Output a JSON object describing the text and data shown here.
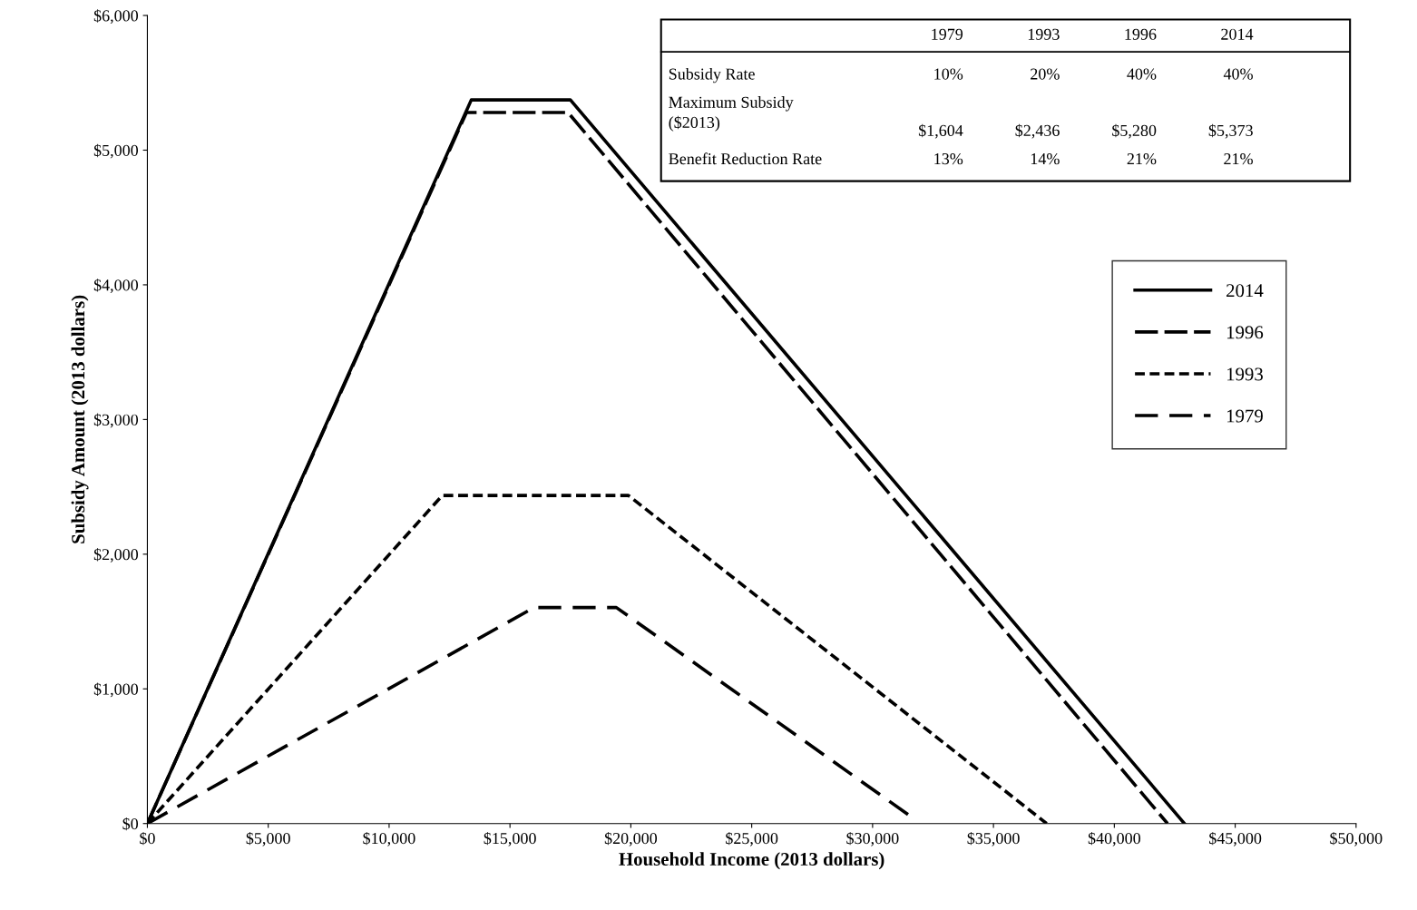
{
  "chart_data": {
    "type": "line",
    "xlabel": "Household Income (2013 dollars)",
    "ylabel": "Subsidy Amount (2013 dollars)",
    "xlim": [
      0,
      50000
    ],
    "ylim": [
      0,
      6000
    ],
    "xticks": [
      {
        "value": 0,
        "label": "$0"
      },
      {
        "value": 5000,
        "label": "$5,000"
      },
      {
        "value": 10000,
        "label": "$10,000"
      },
      {
        "value": 15000,
        "label": "$15,000"
      },
      {
        "value": 20000,
        "label": "$20,000"
      },
      {
        "value": 25000,
        "label": "$25,000"
      },
      {
        "value": 30000,
        "label": "$30,000"
      },
      {
        "value": 35000,
        "label": "$35,000"
      },
      {
        "value": 40000,
        "label": "$40,000"
      },
      {
        "value": 45000,
        "label": "$45,000"
      },
      {
        "value": 50000,
        "label": "$50,000"
      }
    ],
    "yticks": [
      {
        "value": 0,
        "label": "$0"
      },
      {
        "value": 1000,
        "label": "$1,000"
      },
      {
        "value": 2000,
        "label": "$2,000"
      },
      {
        "value": 3000,
        "label": "$3,000"
      },
      {
        "value": 4000,
        "label": "$4,000"
      },
      {
        "value": 5000,
        "label": "$5,000"
      },
      {
        "value": 6000,
        "label": "$6,000"
      }
    ],
    "grid": false,
    "legend": "right",
    "series": [
      {
        "name": "2014",
        "color": "#000000",
        "line_style": "solid",
        "x": [
          0,
          13400,
          17500,
          42900
        ],
        "values": [
          0,
          5373,
          5373,
          0
        ]
      },
      {
        "name": "1996",
        "color": "#000000",
        "line_style": "dashed",
        "x": [
          0,
          13200,
          17400,
          42200
        ],
        "values": [
          0,
          5280,
          5280,
          0
        ]
      },
      {
        "name": "1993",
        "color": "#000000",
        "line_style": "dotted",
        "x": [
          0,
          12200,
          19900,
          37200
        ],
        "values": [
          0,
          2436,
          2436,
          0
        ]
      },
      {
        "name": "1979",
        "color": "#000000",
        "line_style": "dashed",
        "x": [
          0,
          16000,
          19400,
          31600
        ],
        "values": [
          0,
          1604,
          1604,
          50
        ]
      }
    ],
    "annotations": [
      "1979",
      "1993",
      "1996",
      "2014",
      "Subsidy Rate",
      "10%",
      "20%",
      "40%",
      "40%",
      "Maximum Subsidy\n($2013)",
      "$1,604",
      "$2,436",
      "$5,280",
      "$5,373",
      "Benefit Reduction Rate",
      "13%",
      "14%",
      "21%",
      "21%"
    ]
  }
}
